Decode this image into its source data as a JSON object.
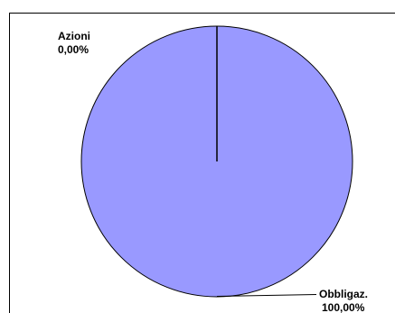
{
  "chart_data": {
    "type": "pie",
    "categories": [
      "Azioni",
      "Obbligaz."
    ],
    "values": [
      0.0,
      100.0
    ],
    "value_labels": [
      "0,00%",
      "100,00%"
    ],
    "colors": [
      "#9999ff",
      "#9999ff"
    ],
    "slice_stroke": "#000000",
    "title": "",
    "legend": "none"
  },
  "labels": {
    "azioni_name": "Azioni",
    "azioni_value": "0,00%",
    "obbligaz_name": "Obbligaz.",
    "obbligaz_value": "100,00%"
  }
}
